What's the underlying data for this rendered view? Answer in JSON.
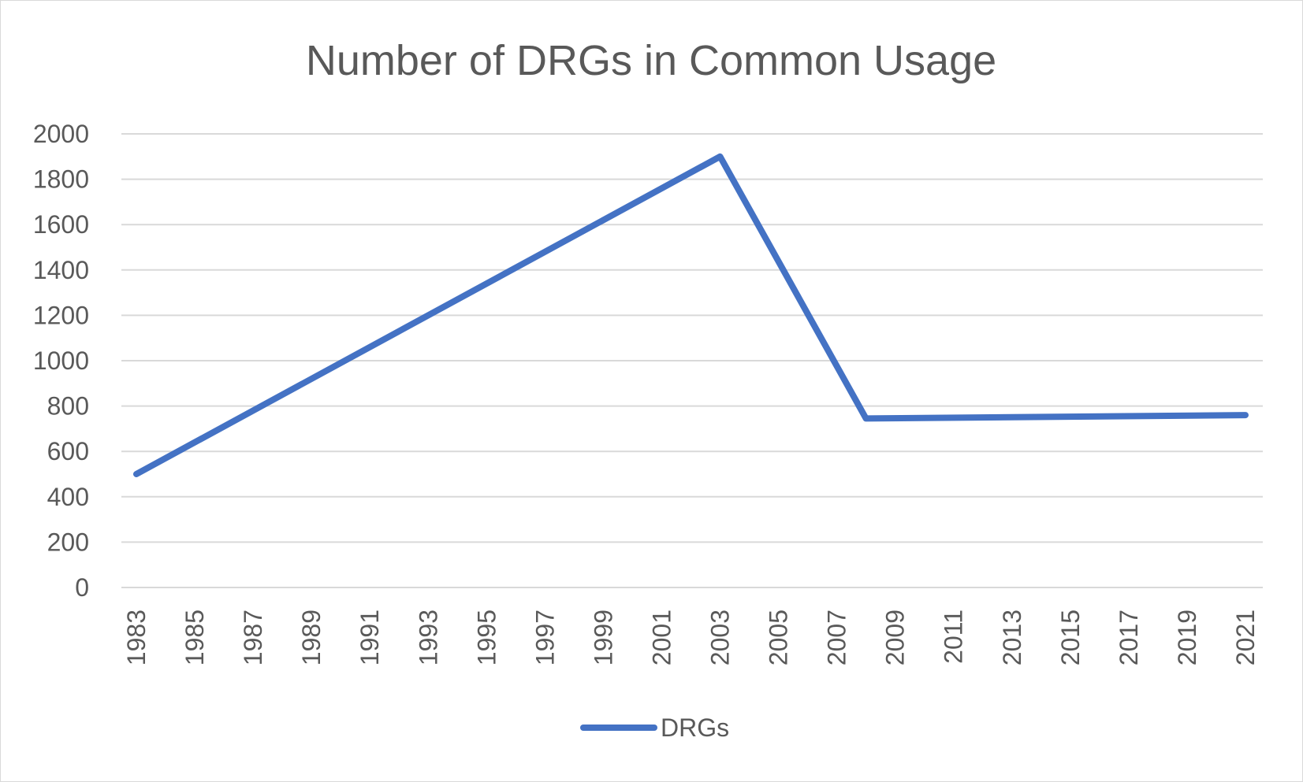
{
  "chart_data": {
    "type": "line",
    "title": "Number of DRGs in Common Usage",
    "xlabel": "",
    "ylabel": "",
    "x_ticks": [
      "1983",
      "1985",
      "1987",
      "1989",
      "1991",
      "1993",
      "1995",
      "1997",
      "1999",
      "2001",
      "2003",
      "2005",
      "2007",
      "2009",
      "2011",
      "2013",
      "2015",
      "2017",
      "2019",
      "2021"
    ],
    "xlim": [
      1983,
      2021
    ],
    "ylim": [
      0,
      2000
    ],
    "y_ticks": [
      0,
      200,
      400,
      600,
      800,
      1000,
      1200,
      1400,
      1600,
      1800,
      2000
    ],
    "grid": true,
    "legend": "bottom",
    "series": [
      {
        "name": "DRGs",
        "color": "#4472c4",
        "points": [
          {
            "x": 1983,
            "y": 500
          },
          {
            "x": 2003,
            "y": 1900
          },
          {
            "x": 2008,
            "y": 745
          },
          {
            "x": 2021,
            "y": 760
          }
        ]
      }
    ]
  }
}
